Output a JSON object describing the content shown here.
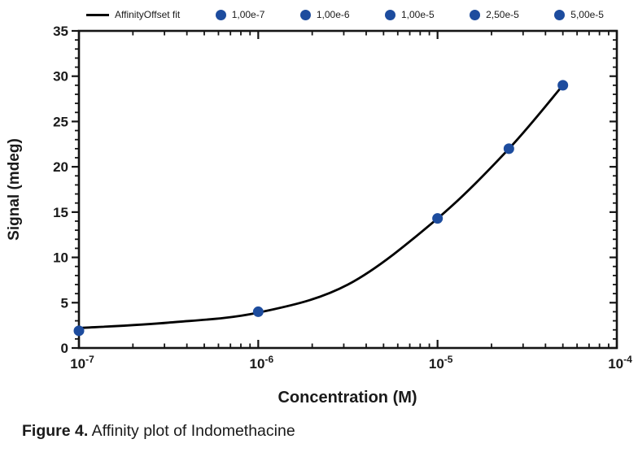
{
  "legend": {
    "items": [
      {
        "type": "line",
        "label": "AffinityOffset fit"
      },
      {
        "type": "dot",
        "label": "1,00e-7"
      },
      {
        "type": "dot",
        "label": "1,00e-6"
      },
      {
        "type": "dot",
        "label": "1,00e-5"
      },
      {
        "type": "dot",
        "label": "2,50e-5"
      },
      {
        "type": "dot",
        "label": "5,00e-5"
      }
    ]
  },
  "chart_data": {
    "type": "scatter",
    "title": "",
    "xlabel": "Concentration (M)",
    "ylabel": "Signal (mdeg)",
    "x_scale": "log",
    "xlim_exp": [
      -7,
      -4
    ],
    "ylim": [
      0,
      35
    ],
    "y_major_step": 5,
    "y_minor_step": 1,
    "x_tick_exponents": [
      -7,
      -6,
      -5,
      -4
    ],
    "x_tick_base": "10",
    "grid": false,
    "legend_position": "top",
    "points": [
      {
        "x": 1e-07,
        "y": 1.9,
        "label": "1,00e-7"
      },
      {
        "x": 1e-06,
        "y": 4.0,
        "label": "1,00e-6"
      },
      {
        "x": 1e-05,
        "y": 14.3,
        "label": "1,00e-5"
      },
      {
        "x": 2.5e-05,
        "y": 22.0,
        "label": "2,50e-5"
      },
      {
        "x": 5e-05,
        "y": 29.0,
        "label": "5,00e-5"
      }
    ],
    "fit_curve": {
      "name": "AffinityOffset fit",
      "log_x": [
        -7,
        -6.5,
        -6,
        -5.5,
        -5,
        -4.602,
        -4.301
      ],
      "y": [
        2.2,
        2.8,
        3.9,
        7.0,
        14.3,
        22.0,
        29.0
      ]
    },
    "colors": {
      "point": "#1d4c9e",
      "line": "#000000",
      "axis": "#141414"
    }
  },
  "caption": {
    "label": "Figure 4.",
    "text": "Affinity plot of Indomethacine"
  }
}
